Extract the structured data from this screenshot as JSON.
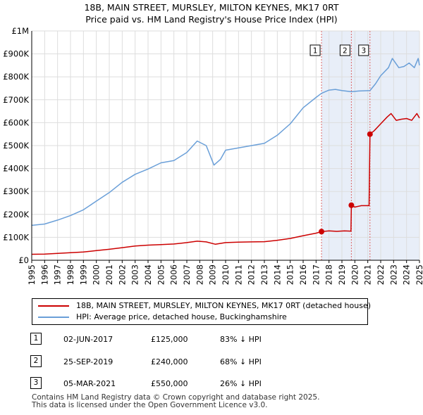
{
  "title_line1": "18B, MAIN STREET, MURSLEY, MILTON KEYNES, MK17 0RT",
  "title_line2": "Price paid vs. HM Land Registry's House Price Index (HPI)",
  "colors": {
    "property": "#cc0000",
    "hpi": "#6a9fd8",
    "shade": "#e8eef8",
    "grid": "#dddddd",
    "vline": "#dd6666"
  },
  "chart_data": {
    "type": "line",
    "title": "18B, MAIN STREET, MURSLEY, MILTON KEYNES, MK17 0RT — Price paid vs. HM Land Registry's House Price Index (HPI)",
    "xlim": [
      1995,
      2025
    ],
    "ylim": [
      0,
      1000000
    ],
    "y_ticks": [
      {
        "value": 0,
        "label": "£0"
      },
      {
        "value": 100000,
        "label": "£100K"
      },
      {
        "value": 200000,
        "label": "£200K"
      },
      {
        "value": 300000,
        "label": "£300K"
      },
      {
        "value": 400000,
        "label": "£400K"
      },
      {
        "value": 500000,
        "label": "£500K"
      },
      {
        "value": 600000,
        "label": "£600K"
      },
      {
        "value": 700000,
        "label": "£700K"
      },
      {
        "value": 800000,
        "label": "£800K"
      },
      {
        "value": 900000,
        "label": "£900K"
      },
      {
        "value": 1000000,
        "label": "£1M"
      }
    ],
    "x_ticks": [
      1995,
      1996,
      1997,
      1998,
      1999,
      2000,
      2001,
      2002,
      2003,
      2004,
      2005,
      2006,
      2007,
      2008,
      2009,
      2010,
      2011,
      2012,
      2013,
      2014,
      2015,
      2016,
      2017,
      2018,
      2019,
      2020,
      2021,
      2022,
      2023,
      2024,
      2025
    ],
    "shaded_from": 2017.42,
    "series": [
      {
        "name": "18B, MAIN STREET, MURSLEY, MILTON KEYNES, MK17 0RT (detached house)",
        "color": "#cc0000",
        "points": [
          [
            1995,
            26000
          ],
          [
            1996,
            27000
          ],
          [
            1997,
            30000
          ],
          [
            1998,
            33000
          ],
          [
            1999,
            36000
          ],
          [
            2000,
            42000
          ],
          [
            2001,
            48000
          ],
          [
            2002,
            55000
          ],
          [
            2003,
            62000
          ],
          [
            2004,
            66000
          ],
          [
            2005,
            68000
          ],
          [
            2006,
            71000
          ],
          [
            2007,
            77000
          ],
          [
            2007.8,
            83000
          ],
          [
            2008.5,
            80000
          ],
          [
            2009.2,
            70000
          ],
          [
            2010,
            77000
          ],
          [
            2011,
            79000
          ],
          [
            2012,
            80000
          ],
          [
            2013,
            81000
          ],
          [
            2014,
            87000
          ],
          [
            2015,
            95000
          ],
          [
            2016,
            107000
          ],
          [
            2017,
            118000
          ],
          [
            2017.42,
            125000
          ],
          [
            2018,
            128000
          ],
          [
            2018.6,
            126000
          ],
          [
            2019.2,
            128000
          ],
          [
            2019.7,
            127000
          ],
          [
            2019.73,
            240000
          ],
          [
            2020,
            232000
          ],
          [
            2020.5,
            238000
          ],
          [
            2021.1,
            238000
          ],
          [
            2021.17,
            550000
          ],
          [
            2021.5,
            565000
          ],
          [
            2022,
            595000
          ],
          [
            2022.5,
            625000
          ],
          [
            2022.8,
            640000
          ],
          [
            2023.2,
            610000
          ],
          [
            2023.6,
            615000
          ],
          [
            2024,
            618000
          ],
          [
            2024.4,
            610000
          ],
          [
            2024.8,
            640000
          ],
          [
            2025,
            620000
          ]
        ]
      },
      {
        "name": "HPI: Average price, detached house, Buckinghamshire",
        "color": "#6a9fd8",
        "points": [
          [
            1995,
            152000
          ],
          [
            1996,
            158000
          ],
          [
            1997,
            175000
          ],
          [
            1998,
            195000
          ],
          [
            1999,
            220000
          ],
          [
            2000,
            258000
          ],
          [
            2001,
            295000
          ],
          [
            2002,
            340000
          ],
          [
            2003,
            375000
          ],
          [
            2004,
            398000
          ],
          [
            2005,
            425000
          ],
          [
            2006,
            435000
          ],
          [
            2007,
            470000
          ],
          [
            2007.8,
            520000
          ],
          [
            2008.5,
            500000
          ],
          [
            2009.1,
            415000
          ],
          [
            2009.6,
            440000
          ],
          [
            2010,
            480000
          ],
          [
            2011,
            490000
          ],
          [
            2012,
            500000
          ],
          [
            2013,
            510000
          ],
          [
            2014,
            545000
          ],
          [
            2015,
            595000
          ],
          [
            2016,
            665000
          ],
          [
            2017,
            710000
          ],
          [
            2017.42,
            728000
          ],
          [
            2018,
            742000
          ],
          [
            2018.5,
            745000
          ],
          [
            2019,
            740000
          ],
          [
            2019.73,
            735000
          ],
          [
            2020.3,
            738000
          ],
          [
            2021.17,
            740000
          ],
          [
            2021.6,
            770000
          ],
          [
            2022,
            805000
          ],
          [
            2022.6,
            840000
          ],
          [
            2022.9,
            880000
          ],
          [
            2023.4,
            840000
          ],
          [
            2023.8,
            845000
          ],
          [
            2024.2,
            860000
          ],
          [
            2024.6,
            840000
          ],
          [
            2024.9,
            880000
          ],
          [
            2025,
            850000
          ]
        ]
      }
    ],
    "sales": [
      {
        "num": "1",
        "year": 2017.42,
        "price": 125000
      },
      {
        "num": "2",
        "year": 2019.73,
        "price": 240000
      },
      {
        "num": "3",
        "year": 2021.17,
        "price": 550000
      }
    ]
  },
  "legend": {
    "property": "18B, MAIN STREET, MURSLEY, MILTON KEYNES, MK17 0RT (detached house)",
    "hpi": "HPI: Average price, detached house, Buckinghamshire"
  },
  "sales_table": [
    {
      "num": "1",
      "date": "02-JUN-2017",
      "price": "£125,000",
      "hpi": "83% ↓ HPI"
    },
    {
      "num": "2",
      "date": "25-SEP-2019",
      "price": "£240,000",
      "hpi": "68% ↓ HPI"
    },
    {
      "num": "3",
      "date": "05-MAR-2021",
      "price": "£550,000",
      "hpi": "26% ↓ HPI"
    }
  ],
  "footer_line1": "Contains HM Land Registry data © Crown copyright and database right 2025.",
  "footer_line2": "This data is licensed under the Open Government Licence v3.0."
}
